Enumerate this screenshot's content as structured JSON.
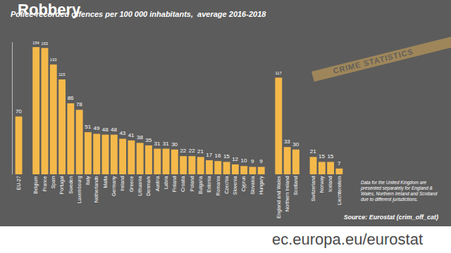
{
  "chart_data": {
    "type": "bar",
    "title": "Robbery",
    "subtitle": "Police-recorded offences per 100 000 inhabitants,  average 2016-2018",
    "categories": [
      "EU-27",
      null,
      "Belgium",
      "France",
      "Spain",
      "Portugal",
      "Sweden",
      "Luxembourg",
      "Italy",
      "Netherlands",
      "Malta",
      "Germany",
      "Ireland",
      "Greece",
      "Lithuania",
      "Denmark",
      "Austria",
      "Latvia",
      "Finland",
      "Croatia",
      "Poland",
      "Bulgaria",
      "Estonia",
      "Romania",
      "Czechia",
      "Slovenia",
      "Cyprus",
      "Slovakia",
      "Hungary",
      null,
      "England and Wales",
      "Northern Ireland",
      "Scotland",
      null,
      "Switzerland",
      "Norway",
      "Iceland",
      "Liechtenstein"
    ],
    "values": [
      70,
      null,
      154,
      153,
      133,
      115,
      86,
      78,
      51,
      49,
      48,
      48,
      43,
      41,
      38,
      35,
      31,
      31,
      30,
      22,
      22,
      21,
      17,
      16,
      15,
      12,
      10,
      9,
      9,
      null,
      117,
      33,
      30,
      null,
      21,
      15,
      15,
      7
    ],
    "color": "#f5b94a",
    "ylim": [
      0,
      160
    ],
    "yticks": [],
    "grid": false,
    "data_labels": true,
    "tick_labels": "x",
    "note": "Data for the United Kingdom are presented separately for England & Wales, Northern Ireland and Scotland due to different jurisdictions.",
    "source": "Source: Eurostat (crim_off_cat)",
    "footer": "ec.europa.eu/eurostat",
    "watermark": "CRIME STATISTICS"
  }
}
